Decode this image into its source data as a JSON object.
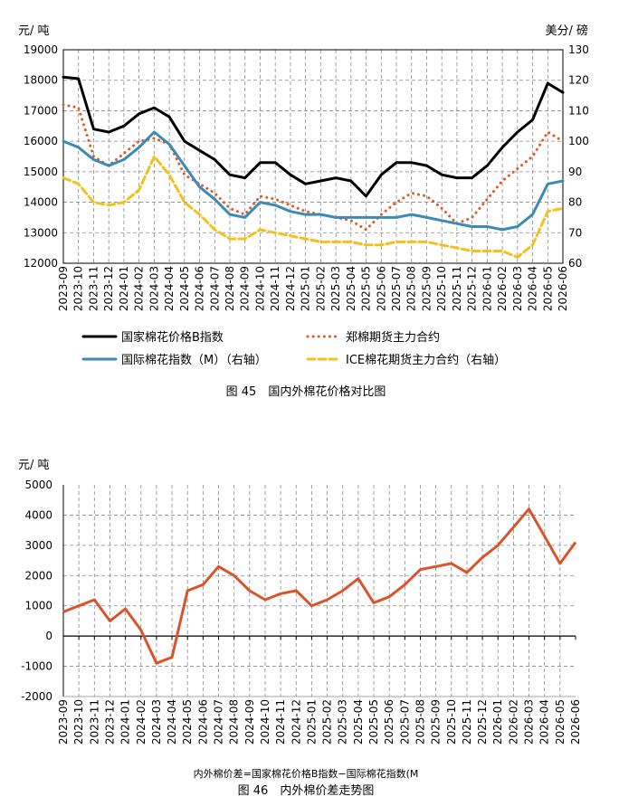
{
  "chart_data": [
    {
      "type": "line",
      "caption": "图 45　国内外棉花价格对比图",
      "left_unit": "元/ 吨",
      "right_unit": "美分/ 磅",
      "ylim_left": [
        12000,
        19000
      ],
      "ylim_right": [
        60,
        130
      ],
      "left_ticks": [
        "12000",
        "13000",
        "14000",
        "15000",
        "16000",
        "17000",
        "18000",
        "19000"
      ],
      "right_ticks": [
        "60",
        "70",
        "80",
        "90",
        "100",
        "110",
        "120",
        "130"
      ],
      "categories": [
        "2023-09",
        "2023-10",
        "2023-11",
        "2023-12",
        "2024-01",
        "2024-02",
        "2024-03",
        "2024-04",
        "2024-05",
        "2024-06",
        "2024-07",
        "2024-08",
        "2024-09",
        "2024-10",
        "2024-11",
        "2024-12",
        "2025-01",
        "2025-02",
        "2025-03",
        "2025-04",
        "2025-05",
        "2025-06",
        "2025-07",
        "2025-08",
        "2025-09",
        "2025-10",
        "2025-11",
        "2025-12",
        "2026-01",
        "2026-02",
        "2026-03",
        "2026-04",
        "2026-05",
        "2026-06"
      ],
      "grid": true,
      "legend_position": "bottom",
      "series": [
        {
          "name": "国家棉花价格B指数",
          "axis": "left",
          "color": "#000000",
          "style": "solid",
          "values": [
            18100,
            18050,
            16400,
            16300,
            16500,
            16900,
            17100,
            16800,
            16000,
            15700,
            15400,
            14900,
            14800,
            15300,
            15300,
            14900,
            14600,
            14700,
            14800,
            14700,
            14200,
            14900,
            15300,
            15300,
            15200,
            14900,
            14800,
            14800,
            15200,
            15800,
            16300,
            16700,
            17900,
            17600
          ]
        },
        {
          "name": "郑棉期货主力合约",
          "axis": "left",
          "color": "#E05A28",
          "style": "dotted",
          "values": [
            17200,
            17100,
            15500,
            15200,
            15600,
            16000,
            16100,
            15900,
            14900,
            14600,
            14300,
            13800,
            13600,
            14200,
            14100,
            13900,
            13700,
            13600,
            13500,
            13400,
            13100,
            13600,
            14000,
            14300,
            14200,
            13800,
            13300,
            13500,
            14100,
            14700,
            15100,
            15500,
            16300,
            16000
          ]
        },
        {
          "name": "国际棉花指数（M）（右轴）",
          "axis": "right",
          "color": "#3B8BB5",
          "style": "solid",
          "values": [
            100,
            98,
            94,
            92,
            94,
            98,
            103,
            99,
            92,
            85,
            81,
            76,
            75,
            80,
            79,
            77,
            76,
            76,
            75,
            75,
            75,
            75,
            75,
            76,
            75,
            74,
            73,
            72,
            72,
            71,
            72,
            76,
            86,
            87
          ]
        },
        {
          "name": "ICE棉花期货主力合约（右轴）",
          "axis": "right",
          "color": "#F2C11B",
          "style": "dashed",
          "values": [
            88,
            86,
            80,
            79,
            80,
            84,
            95,
            89,
            80,
            76,
            71,
            68,
            68,
            71,
            70,
            69,
            68,
            67,
            67,
            67,
            66,
            66,
            67,
            67,
            67,
            66,
            65,
            64,
            64,
            64,
            62,
            66,
            77,
            78
          ]
        }
      ]
    },
    {
      "type": "line",
      "caption": "图 46　内外棉价差走势图",
      "subcaption": "内外棉价差=国家棉花价格B指数−国际棉花指数(M",
      "left_unit": "元/ 吨",
      "ylim": [
        -2000,
        5000
      ],
      "ticks": [
        "-2000",
        "-1000",
        "0",
        "1000",
        "2000",
        "3000",
        "4000",
        "5000"
      ],
      "categories": [
        "2023-09",
        "2023-10",
        "2023-11",
        "2023-12",
        "2024-01",
        "2024-02",
        "2024-03",
        "2024-04",
        "2024-05",
        "2024-06",
        "2024-07",
        "2024-08",
        "2024-09",
        "2024-10",
        "2024-11",
        "2024-12",
        "2025-01",
        "2025-02",
        "2025-03",
        "2025-04",
        "2025-05",
        "2025-06",
        "2025-07",
        "2025-08",
        "2025-09",
        "2025-10",
        "2025-11",
        "2025-12",
        "2026-01",
        "2026-02",
        "2026-03",
        "2026-04",
        "2026-05",
        "2026-06"
      ],
      "grid": true,
      "series": [
        {
          "name": "内外棉价差",
          "color": "#D9542B",
          "values": [
            800,
            1000,
            1200,
            500,
            900,
            200,
            -900,
            -700,
            1500,
            1700,
            2300,
            2000,
            1500,
            1200,
            1400,
            1500,
            1000,
            1200,
            1500,
            1900,
            1100,
            1300,
            1700,
            2200,
            2300,
            2400,
            2100,
            2600,
            3000,
            3600,
            4200,
            3300,
            2400,
            3100
          ]
        }
      ]
    }
  ]
}
